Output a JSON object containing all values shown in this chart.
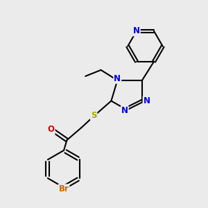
{
  "bg_color": "#ebebeb",
  "bond_color": "#000000",
  "bond_width": 1.5,
  "atom_colors": {
    "N": "#0000dd",
    "O": "#dd0000",
    "S": "#aaaa00",
    "Br": "#cc6600",
    "C": "#000000"
  },
  "font_size": 8.5
}
